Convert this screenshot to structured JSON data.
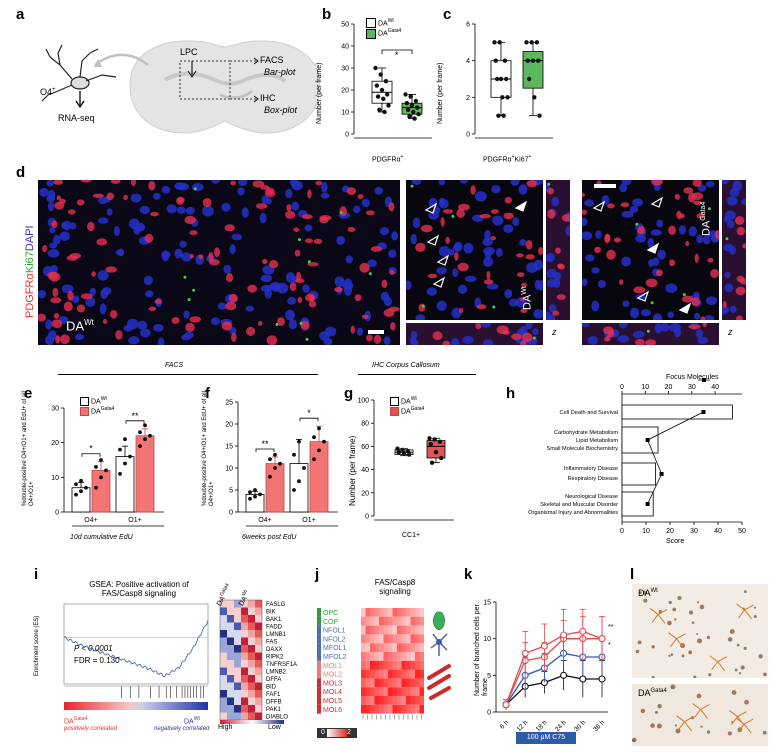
{
  "panel_labels": [
    "a",
    "b",
    "c",
    "d",
    "e",
    "f",
    "g",
    "h",
    "i",
    "j",
    "k",
    "l"
  ],
  "panel_a": {
    "o4": "O4",
    "o4_sup": "+",
    "rnaseq": "RNA-seq",
    "lpc": "LPC",
    "facs": "FACS",
    "barplot": "Bar-plot",
    "ihc": "IHC",
    "boxplot": "Box-plot"
  },
  "legend": {
    "dawt_base": "DA",
    "dawt_sup": "Wt",
    "dagata_base": "DA",
    "dagata_sup": "Gata4"
  },
  "panel_b": {
    "ylabel": "Number (per frame)",
    "xlabel": "PDGFRα",
    "xlabel_sup": "+",
    "sig": "*",
    "yticks": [
      "0",
      "10",
      "20",
      "30",
      "40",
      "50"
    ]
  },
  "panel_c": {
    "ylabel": "Number (per frame)",
    "xlabel": "PDGFRα",
    "xlabel_sup1": "+",
    "xlabel_mid": "Ki67",
    "xlabel_sup2": "+",
    "yticks": [
      "0",
      "2",
      "4",
      "6"
    ]
  },
  "panel_d": {
    "stain_pdgfra": "PDGFRα",
    "stain_ki67": "Ki67",
    "stain_dapi": "DAPI",
    "dawt": "DA",
    "dawt_sup": "Wt",
    "dagata": "DA",
    "dagata_sup": "Gata4",
    "z": "z"
  },
  "section_labels": {
    "facs": "FACS",
    "ihc": "IHC Corpus Callosum"
  },
  "panel_e": {
    "ylabel": "%double-positive O4+/O1+ and EdU+ of all O4+/O1+",
    "xcats": [
      "O4+",
      "O1+"
    ],
    "sig": [
      "*",
      "**"
    ],
    "yticks": [
      "0",
      "10",
      "20",
      "30"
    ],
    "caption": "10d cumulative EdU"
  },
  "panel_f": {
    "ylabel": "%double-positive O4+/O1+ and EdU+ of all O4+/O1+",
    "xcats": [
      "O4+",
      "O1+"
    ],
    "sig": [
      "**",
      "*"
    ],
    "yticks": [
      "0",
      "5",
      "10",
      "15",
      "20",
      "25"
    ],
    "caption": "6weeks post EdU"
  },
  "panel_g": {
    "ylabel": "Number (per frame)",
    "xlabel": "CC1+",
    "yticks": [
      "0",
      "20",
      "40",
      "60",
      "80",
      "100"
    ]
  },
  "panel_h": {
    "top_axis_title": "Focus Molecules",
    "top_ticks": [
      "0",
      "10",
      "20",
      "30",
      "40"
    ],
    "bottom_ticks": [
      "0",
      "10",
      "20",
      "30",
      "40",
      "50"
    ],
    "xlabel": "Score",
    "categories": [
      "Cell Death and Survival",
      "Carbohydrate Metabolism",
      "Lipid Metabolism",
      "Small Molecule Biochemistry",
      "Inflammatory Disease",
      "Respiratory Disease",
      "Neurological Disease",
      "Skeletal and Muscular Disorder",
      "Organismal Injury and Abnormalities"
    ]
  },
  "panel_i": {
    "title1": "GSEA: Positive activation of",
    "title2": "FAS/Casp8 signaling",
    "ylabel": "Enrichment score (ES)",
    "pval": "P < 0.0001",
    "fdr": "FDR = 0.130",
    "left_label": "DA",
    "left_sup": "Gata4",
    "right_label": "DA",
    "right_sup": "Wt",
    "pos": "positively correlated",
    "neg": "negatively correlated",
    "heat_col1": "DA",
    "heat_col1_sup": "Gata4",
    "heat_col2": "DA",
    "heat_col2_sup": "Wt",
    "genes": [
      "FASLG",
      "BIK",
      "BAK1",
      "FADD",
      "LMNB1",
      "FAS",
      "DAXX",
      "RIPK2",
      "TNFRSF1A",
      "LMNB2",
      "DFFA",
      "BID",
      "FAF1",
      "DFFB",
      "PAK1",
      "DIABLO"
    ],
    "high": "High",
    "low": "Low"
  },
  "panel_j": {
    "title1": "FAS/Casp8",
    "title2": "signaling",
    "rows": [
      "OPC",
      "COP",
      "NFOL1",
      "NFOL2",
      "MFOL1",
      "MFOL2",
      "MOL1",
      "MOL2",
      "MOL3",
      "MOL4",
      "MOL5",
      "MOL6"
    ],
    "row_colors": [
      "#2e9e3c",
      "#2e9e3c",
      "#4a6fb5",
      "#4a6fb5",
      "#4a6fb5",
      "#4a6fb5",
      "#e87b7b",
      "#e87b7b",
      "#d32b2b",
      "#d32b2b",
      "#d32b2b",
      "#d32b2b"
    ],
    "scale_min": "0",
    "scale_max": "2"
  },
  "panel_k": {
    "ylabel": "Number of branched cells per frame",
    "xticks": [
      "6 h",
      "12 h",
      "18 h",
      "24 h",
      "30 h",
      "36 h"
    ],
    "yticks": [
      "0",
      "5",
      "10",
      "15"
    ],
    "sig": [
      "**",
      "*"
    ],
    "treatment": "100 μM C75"
  },
  "panel_l": {
    "dawt": "DA",
    "dawt_sup": "Wt",
    "dagata": "DA",
    "dagata_sup": "Gata4"
  },
  "chart_data": [
    {
      "id": "b",
      "type": "box",
      "categories": [
        "DA Wt",
        "DA Gata4"
      ],
      "ylim": [
        0,
        50
      ],
      "values": [
        [
          30,
          27,
          24,
          22,
          20,
          18,
          17,
          16,
          13,
          11,
          10
        ],
        [
          18,
          17,
          15,
          14,
          13,
          12,
          11,
          10,
          9,
          8,
          7
        ]
      ],
      "box": [
        {
          "q1": 14,
          "median": 19,
          "q3": 24,
          "min": 10,
          "max": 30
        },
        {
          "q1": 9,
          "median": 12,
          "q3": 14,
          "min": 7,
          "max": 18
        }
      ],
      "colors": [
        "#ffffff",
        "#5cb85c"
      ]
    },
    {
      "id": "c",
      "type": "box",
      "categories": [
        "DA Wt",
        "DA Gata4"
      ],
      "ylim": [
        0,
        6
      ],
      "values": [
        [
          5,
          5,
          4,
          4,
          3,
          3,
          3,
          2,
          2,
          1,
          1
        ],
        [
          5,
          5,
          5,
          4,
          4,
          4,
          3,
          2,
          1
        ]
      ],
      "box": [
        {
          "q1": 2,
          "median": 3,
          "q3": 4,
          "min": 1,
          "max": 5
        },
        {
          "q1": 2.5,
          "median": 4,
          "q3": 4.5,
          "min": 1,
          "max": 5
        }
      ],
      "colors": [
        "#ffffff",
        "#5cb85c"
      ]
    },
    {
      "id": "e",
      "type": "bar",
      "categories": [
        "O4+",
        "O1+"
      ],
      "ylim": [
        0,
        30
      ],
      "series": [
        {
          "values": [
            7,
            12
          ],
          "err": [
            1.5,
            2.5
          ],
          "points": [
            [
              5,
              6,
              7,
              8,
              9
            ],
            [
              7,
              10,
              12,
              13,
              15
            ]
          ]
        },
        {
          "values": [
            16,
            22
          ],
          "err": [
            3,
            2
          ],
          "points": [
            [
              11,
              14,
              16,
              18,
              21
            ],
            [
              19,
              21,
              22,
              23,
              25
            ]
          ]
        }
      ]
    },
    {
      "id": "f",
      "type": "bar",
      "categories": [
        "O4+",
        "O1+"
      ],
      "ylim": [
        0,
        25
      ],
      "series": [
        {
          "values": [
            4,
            11
          ],
          "err": [
            0.7,
            1.5
          ],
          "points": [
            [
              3,
              3.5,
              4,
              4.5,
              5
            ],
            [
              8,
              10,
              11,
              12,
              13
            ]
          ]
        },
        {
          "values": [
            11,
            16
          ],
          "err": [
            5.5,
            3.5
          ],
          "points": [
            [
              5,
              7,
              10,
              13,
              16
            ],
            [
              12,
              14,
              16,
              17,
              19
            ]
          ]
        }
      ]
    },
    {
      "id": "g",
      "type": "box",
      "categories": [
        "DA Wt",
        "DA Gata4"
      ],
      "ylim": [
        0,
        100
      ],
      "values": [
        [
          58,
          57,
          56,
          55,
          54,
          53
        ],
        [
          67,
          66,
          64,
          62,
          55,
          50,
          46
        ]
      ],
      "box": [
        {
          "q1": 53,
          "median": 55,
          "q3": 57,
          "min": 52,
          "max": 58
        },
        {
          "q1": 50,
          "median": 60,
          "q3": 65,
          "min": 46,
          "max": 67
        }
      ],
      "colors": [
        "#ffffff",
        "#e05555"
      ]
    },
    {
      "id": "h",
      "type": "bar",
      "categories": [
        "Cell Death and Survival",
        "Carbohydrate Metabolism / Lipid Metabolism / Small Molecule Biochemistry",
        "Inflammatory Disease / Respiratory Disease",
        "Neurological Disease / Skeletal and Muscular Disorder / Organismal Injury and Abnormalities"
      ],
      "score": [
        46,
        15,
        14,
        13
      ],
      "focus_molecules": [
        35,
        11,
        17,
        11
      ],
      "xlim": [
        0,
        50
      ]
    },
    {
      "id": "i",
      "type": "line",
      "ylim": [
        -0.7,
        0.5
      ],
      "x": [
        0,
        10,
        20,
        30,
        40,
        50,
        60,
        70,
        80,
        90,
        100
      ],
      "es": [
        0,
        -0.1,
        -0.18,
        -0.26,
        -0.33,
        -0.4,
        -0.48,
        -0.58,
        -0.45,
        -0.15,
        0.25
      ]
    },
    {
      "id": "k",
      "type": "line",
      "x": [
        "6 h",
        "12 h",
        "18 h",
        "24 h",
        "30 h",
        "36 h"
      ],
      "ylim": [
        0,
        15
      ],
      "series": [
        {
          "color": "#111111",
          "values": [
            1,
            3.5,
            4,
            5,
            4.5,
            4.5
          ],
          "err": [
            0.7,
            1.5,
            1.5,
            2.0,
            2.5,
            2.5
          ]
        },
        {
          "color": "#3355cc",
          "values": [
            1,
            5,
            6,
            8,
            7.5,
            7.5
          ],
          "err": [
            0.7,
            2.5,
            2,
            2,
            2.5,
            2.5
          ]
        },
        {
          "color": "#e8474c",
          "values": [
            1,
            7,
            7.5,
            10,
            10,
            10
          ],
          "err": [
            0.7,
            2.5,
            2,
            2.5,
            3,
            3
          ]
        },
        {
          "color": "#e8474c",
          "values": [
            1,
            8,
            9,
            10.5,
            11,
            10
          ],
          "err": [
            0.7,
            3,
            3,
            3.5,
            3,
            3
          ]
        }
      ]
    }
  ]
}
